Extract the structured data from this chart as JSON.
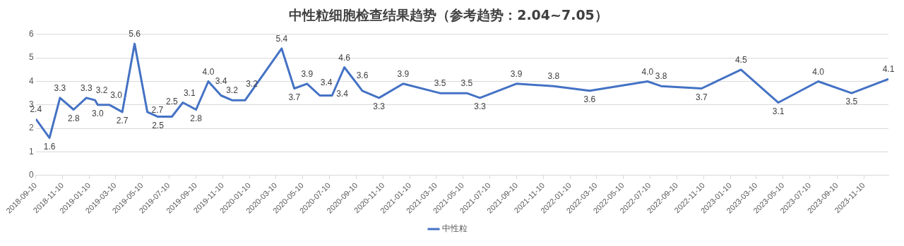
{
  "chart_data": {
    "type": "line",
    "title": "中性粒细胞检查结果趋势（参考趋势：2.04~7.05）",
    "x": [
      "2018-09-10",
      "2018-10-11",
      "2018-11-04",
      "2018-12-05",
      "2019-01-03",
      "2019-01-23",
      "2019-01-29",
      "2019-02-25",
      "2019-03-26",
      "2019-04-23",
      "2019-05-22",
      "2019-06-15",
      "2019-07-17",
      "2019-08-11",
      "2019-09-10",
      "2019-10-08",
      "2019-11-06",
      "2019-12-01",
      "2019-12-31",
      "2020-03-23",
      "2020-04-21",
      "2020-05-20",
      "2020-06-18",
      "2020-07-16",
      "2020-08-13",
      "2020-09-23",
      "2020-10-31",
      "2020-12-25",
      "2021-03-19",
      "2021-05-19",
      "2021-06-18",
      "2021-09-09",
      "2021-12-03",
      "2022-02-23",
      "2022-07-05",
      "2022-08-05",
      "2022-11-05",
      "2023-02-03",
      "2023-04-29",
      "2023-07-29",
      "2023-10-13",
      "2024-01-05"
    ],
    "series": [
      {
        "name": "中性粒",
        "color": "#4472c4",
        "values": [
          2.4,
          1.6,
          3.3,
          2.8,
          3.3,
          3.2,
          3.0,
          3.0,
          2.7,
          5.6,
          2.7,
          2.5,
          2.5,
          3.1,
          2.8,
          4.0,
          3.4,
          3.2,
          3.2,
          5.4,
          3.7,
          3.9,
          3.4,
          3.4,
          4.6,
          3.6,
          3.3,
          3.9,
          3.5,
          3.5,
          3.3,
          3.9,
          3.8,
          3.6,
          4.0,
          3.8,
          3.7,
          4.5,
          3.1,
          4.0,
          3.5,
          4.1
        ],
        "value_labels": [
          "2.4",
          "1.6",
          "3.3",
          "2.8",
          "3.3",
          "3.2",
          "3.0",
          "3.0",
          "2.7",
          "5.6",
          "2.7",
          "2.5",
          "2.5",
          "3.1",
          "2.8",
          "4.0",
          "3.4",
          "3.2",
          "3.2",
          "5.4",
          "3.7",
          "3.9",
          "3.4",
          "3.4",
          "4.6",
          "3.6",
          "3.3",
          "3.9",
          "3.5",
          "3.5",
          "3.3",
          "3.9",
          "3.8",
          "3.6",
          "4.0",
          "3.8",
          "3.7",
          "4.5",
          "3.1",
          "4.0",
          "3.5",
          "4.1"
        ]
      }
    ],
    "xlim": [
      "2018-09-10",
      "2024-01-05"
    ],
    "xticks": [
      "2018-09-10",
      "2018-11-10",
      "2019-01-10",
      "2019-03-10",
      "2019-05-10",
      "2019-07-10",
      "2019-09-10",
      "2019-11-10",
      "2020-01-10",
      "2020-03-10",
      "2020-05-10",
      "2020-07-10",
      "2020-09-10",
      "2020-11-10",
      "2021-01-10",
      "2021-03-10",
      "2021-05-10",
      "2021-07-10",
      "2021-09-10",
      "2021-11-10",
      "2022-01-10",
      "2022-03-10",
      "2022-05-10",
      "2022-07-10",
      "2022-09-10",
      "2022-11-10",
      "2023-01-10",
      "2023-03-10",
      "2023-05-10",
      "2023-07-10",
      "2023-09-10",
      "2023-11-10"
    ],
    "ylim": [
      0,
      6
    ],
    "yticks": [
      0,
      1,
      2,
      3,
      4,
      5,
      6
    ],
    "grid": "y",
    "legend": "bottom",
    "marker": "none",
    "line_style": "solid"
  }
}
